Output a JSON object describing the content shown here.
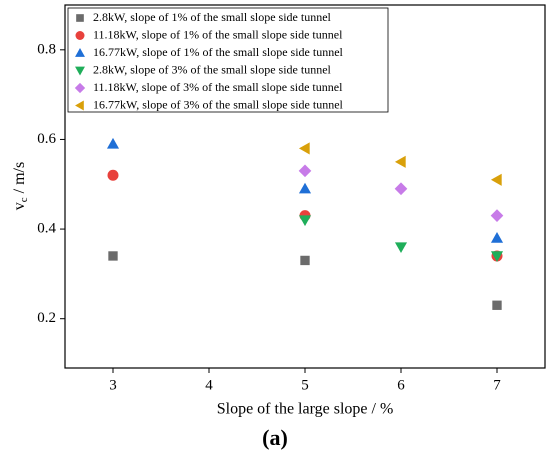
{
  "chart_data": {
    "type": "scatter",
    "x_label": "Slope of the large slope  / %",
    "y_label": [
      "v",
      "c",
      " / m/s"
    ],
    "caption": "(a)",
    "xlim": [
      2.5,
      7.5
    ],
    "xticks": [
      3,
      4,
      5,
      6,
      7
    ],
    "ylim": [
      0.09,
      0.9
    ],
    "yticks": [
      0.2,
      0.4,
      0.6,
      0.8
    ],
    "legend": "upper-left",
    "series": [
      {
        "name": "2.8kW, slope of 1% of the small slope side tunnel",
        "color": "#6b6b6b",
        "marker": "square",
        "x": [
          3,
          5,
          7
        ],
        "values": [
          0.34,
          0.33,
          0.23
        ]
      },
      {
        "name": "11.18kW, slope of 1% of the small slope side tunnel",
        "color": "#e8413c",
        "marker": "circle",
        "x": [
          3,
          5,
          7
        ],
        "values": [
          0.52,
          0.43,
          0.34
        ]
      },
      {
        "name": "16.77kW, slope of 1% of the small slope side tunnel",
        "color": "#1f6fd6",
        "marker": "triangle-up",
        "x": [
          3,
          5,
          7
        ],
        "values": [
          0.59,
          0.49,
          0.38
        ]
      },
      {
        "name": "2.8kW, slope of 3% of the small slope side tunnel",
        "color": "#1fae5a",
        "marker": "triangle-down",
        "x": [
          5,
          6,
          7
        ],
        "values": [
          0.42,
          0.36,
          0.34
        ]
      },
      {
        "name": "11.18kW, slope of 3% of the small slope side tunnel",
        "color": "#c77be8",
        "marker": "diamond",
        "x": [
          5,
          6,
          7
        ],
        "values": [
          0.53,
          0.49,
          0.43
        ]
      },
      {
        "name": "16.77kW, slope of 3% of the small slope side tunnel",
        "color": "#d9a00a",
        "marker": "triangle-left",
        "x": [
          5,
          6,
          7
        ],
        "values": [
          0.58,
          0.55,
          0.51
        ]
      }
    ]
  }
}
